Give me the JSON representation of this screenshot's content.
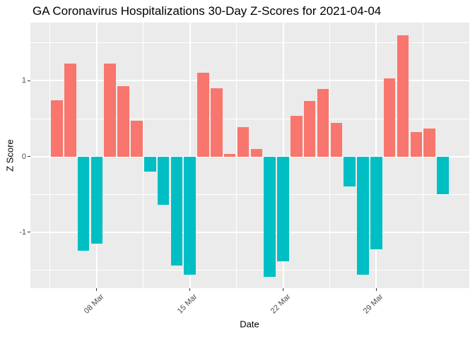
{
  "chart_data": {
    "type": "bar",
    "title": "GA Coronavirus Hospitalizations 30-Day Z-Scores for 2021-04-04",
    "xlabel": "Date",
    "ylabel": "Z Score",
    "legend_position": "none",
    "grid": true,
    "ylim": [
      -1.74,
      1.77
    ],
    "y_ticks": [
      {
        "label": "1",
        "value": 1
      },
      {
        "label": "0",
        "value": 0
      },
      {
        "label": "-1",
        "value": -1
      }
    ],
    "y_minor": [
      1.5,
      0.5,
      -0.5,
      -1.5
    ],
    "x_ticks": [
      {
        "label": "08 Mar",
        "day_index": 3
      },
      {
        "label": "15 Mar",
        "day_index": 10
      },
      {
        "label": "22 Mar",
        "day_index": 17
      },
      {
        "label": "29 Mar",
        "day_index": 24
      }
    ],
    "x_minor_day_index": [
      -0.5,
      6.5,
      13.5,
      20.5,
      27.5
    ],
    "dates": [
      "2021-03-05",
      "2021-03-06",
      "2021-03-07",
      "2021-03-08",
      "2021-03-09",
      "2021-03-10",
      "2021-03-11",
      "2021-03-12",
      "2021-03-13",
      "2021-03-14",
      "2021-03-15",
      "2021-03-16",
      "2021-03-17",
      "2021-03-18",
      "2021-03-19",
      "2021-03-20",
      "2021-03-21",
      "2021-03-22",
      "2021-03-23",
      "2021-03-24",
      "2021-03-25",
      "2021-03-26",
      "2021-03-27",
      "2021-03-28",
      "2021-03-29",
      "2021-03-30",
      "2021-03-31",
      "2021-04-01",
      "2021-04-02",
      "2021-04-03"
    ],
    "values": [
      0.74,
      1.23,
      -1.25,
      -1.15,
      1.23,
      0.93,
      0.47,
      -0.2,
      -0.64,
      -1.44,
      -1.56,
      1.11,
      0.9,
      0.03,
      0.39,
      0.1,
      -1.59,
      -1.39,
      0.54,
      0.73,
      0.89,
      0.44,
      -0.4,
      -1.56,
      -1.23,
      1.03,
      1.6,
      0.32,
      0.37,
      -0.5
    ],
    "colors": {
      "positive": "#F8766D",
      "negative": "#00BFC4",
      "panel_bg": "#EBEBEB",
      "gridline": "#FFFFFF",
      "tick_text": "#4D4D4D",
      "axis_title_text": "#000000"
    }
  }
}
